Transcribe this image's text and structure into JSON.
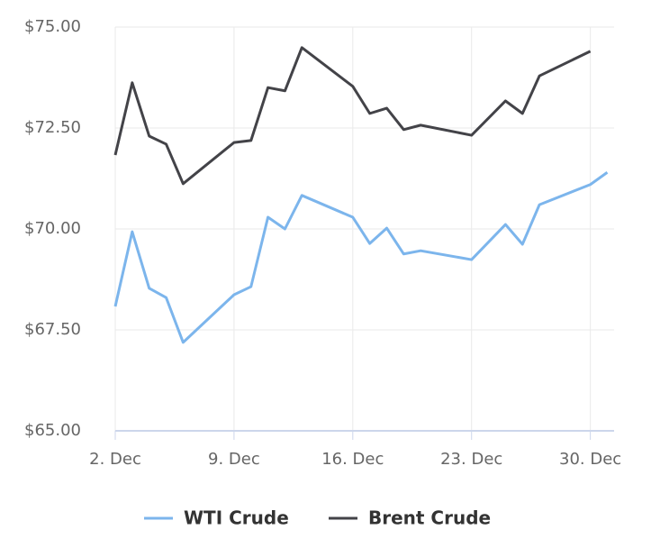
{
  "chart_data": {
    "type": "line",
    "x": [
      2,
      3,
      4,
      5,
      6,
      9,
      10,
      11,
      12,
      13,
      16,
      17,
      18,
      19,
      20,
      23,
      25,
      26,
      27,
      30,
      31
    ],
    "series": [
      {
        "name": "WTI Crude",
        "color": "#7cb5ec",
        "values": [
          68.08,
          69.93,
          68.53,
          68.3,
          67.19,
          68.37,
          68.57,
          70.29,
          70.0,
          70.83,
          70.29,
          69.64,
          70.02,
          69.38,
          69.46,
          69.24,
          70.11,
          69.62,
          70.6,
          71.1,
          71.4
        ]
      },
      {
        "name": "Brent Crude",
        "color": "#434348",
        "values": [
          71.83,
          73.62,
          72.3,
          72.1,
          71.12,
          72.14,
          72.19,
          73.5,
          73.42,
          74.49,
          73.53,
          72.86,
          72.99,
          72.46,
          72.57,
          72.32,
          73.17,
          72.86,
          73.79,
          74.4,
          null
        ]
      }
    ],
    "xlim": [
      2,
      31.4
    ],
    "xticks": [
      {
        "value": 2,
        "label": "2. Dec"
      },
      {
        "value": 9,
        "label": "9. Dec"
      },
      {
        "value": 16,
        "label": "16. Dec"
      },
      {
        "value": 23,
        "label": "23. Dec"
      },
      {
        "value": 30,
        "label": "30. Dec"
      }
    ],
    "ylim": [
      65,
      75
    ],
    "yticks": [
      {
        "value": 65,
        "label": "$65.00"
      },
      {
        "value": 67.5,
        "label": "$67.50"
      },
      {
        "value": 70,
        "label": "$70.00"
      },
      {
        "value": 72.5,
        "label": "$72.50"
      },
      {
        "value": 75,
        "label": "$75.00"
      }
    ],
    "grid": true,
    "legend": "bottom"
  }
}
